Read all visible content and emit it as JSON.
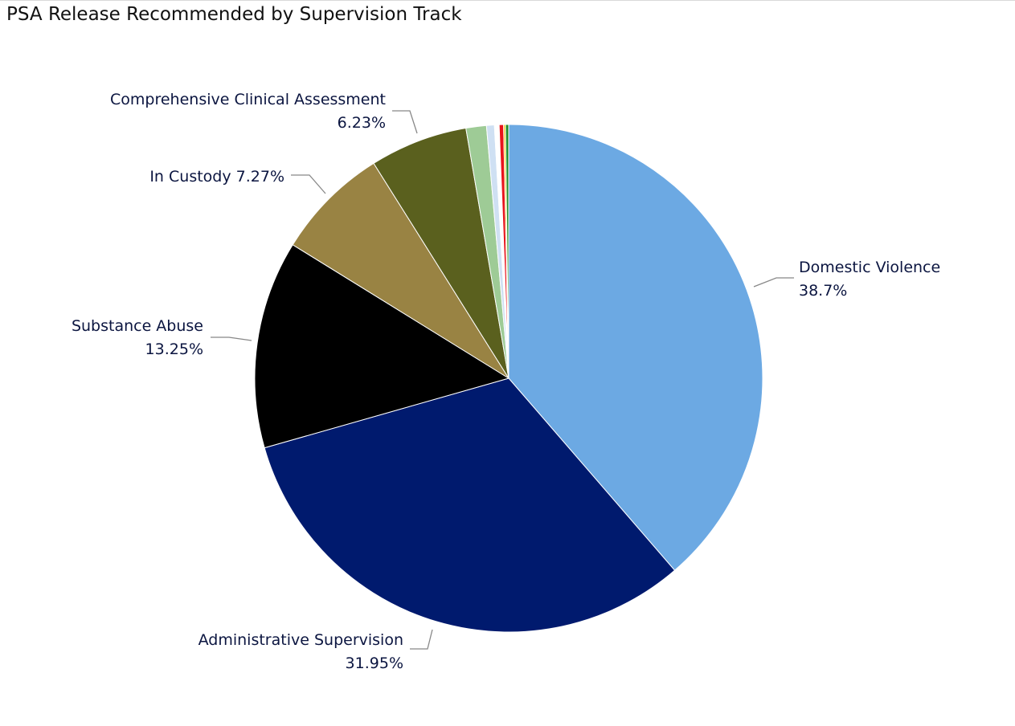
{
  "chart_data": {
    "type": "pie",
    "title": "PSA Release Recommended by Supervision Track",
    "slices": [
      {
        "name": "Domestic Violence",
        "value": 38.7,
        "label": "38.7%",
        "color": "#6CA9E3"
      },
      {
        "name": "Administrative Supervision",
        "value": 31.95,
        "label": "31.95%",
        "color": "#001A6E"
      },
      {
        "name": "Substance Abuse",
        "value": 13.25,
        "label": "13.25%",
        "color": "#000000"
      },
      {
        "name": "In Custody",
        "value": 7.27,
        "label": "7.27%",
        "color": "#998343"
      },
      {
        "name": "Comprehensive Clinical Assessment",
        "value": 6.23,
        "label": "6.23%",
        "color": "#5A601E"
      },
      {
        "name": "",
        "value": 1.3,
        "label": "",
        "color": "#9ECB96"
      },
      {
        "name": "",
        "value": 0.5,
        "label": "",
        "color": "#CFE0F3"
      },
      {
        "name": "",
        "value": 0.3,
        "label": "",
        "color": "#FFFFFF"
      },
      {
        "name": "",
        "value": 0.28,
        "label": "",
        "color": "#E8141B"
      },
      {
        "name": "",
        "value": 0.12,
        "label": "",
        "color": "#F2C811"
      },
      {
        "name": "",
        "value": 0.2,
        "label": "",
        "color": "#1E8E2A"
      }
    ],
    "start_angle_deg": 0,
    "direction": "clockwise",
    "legend": "none"
  }
}
